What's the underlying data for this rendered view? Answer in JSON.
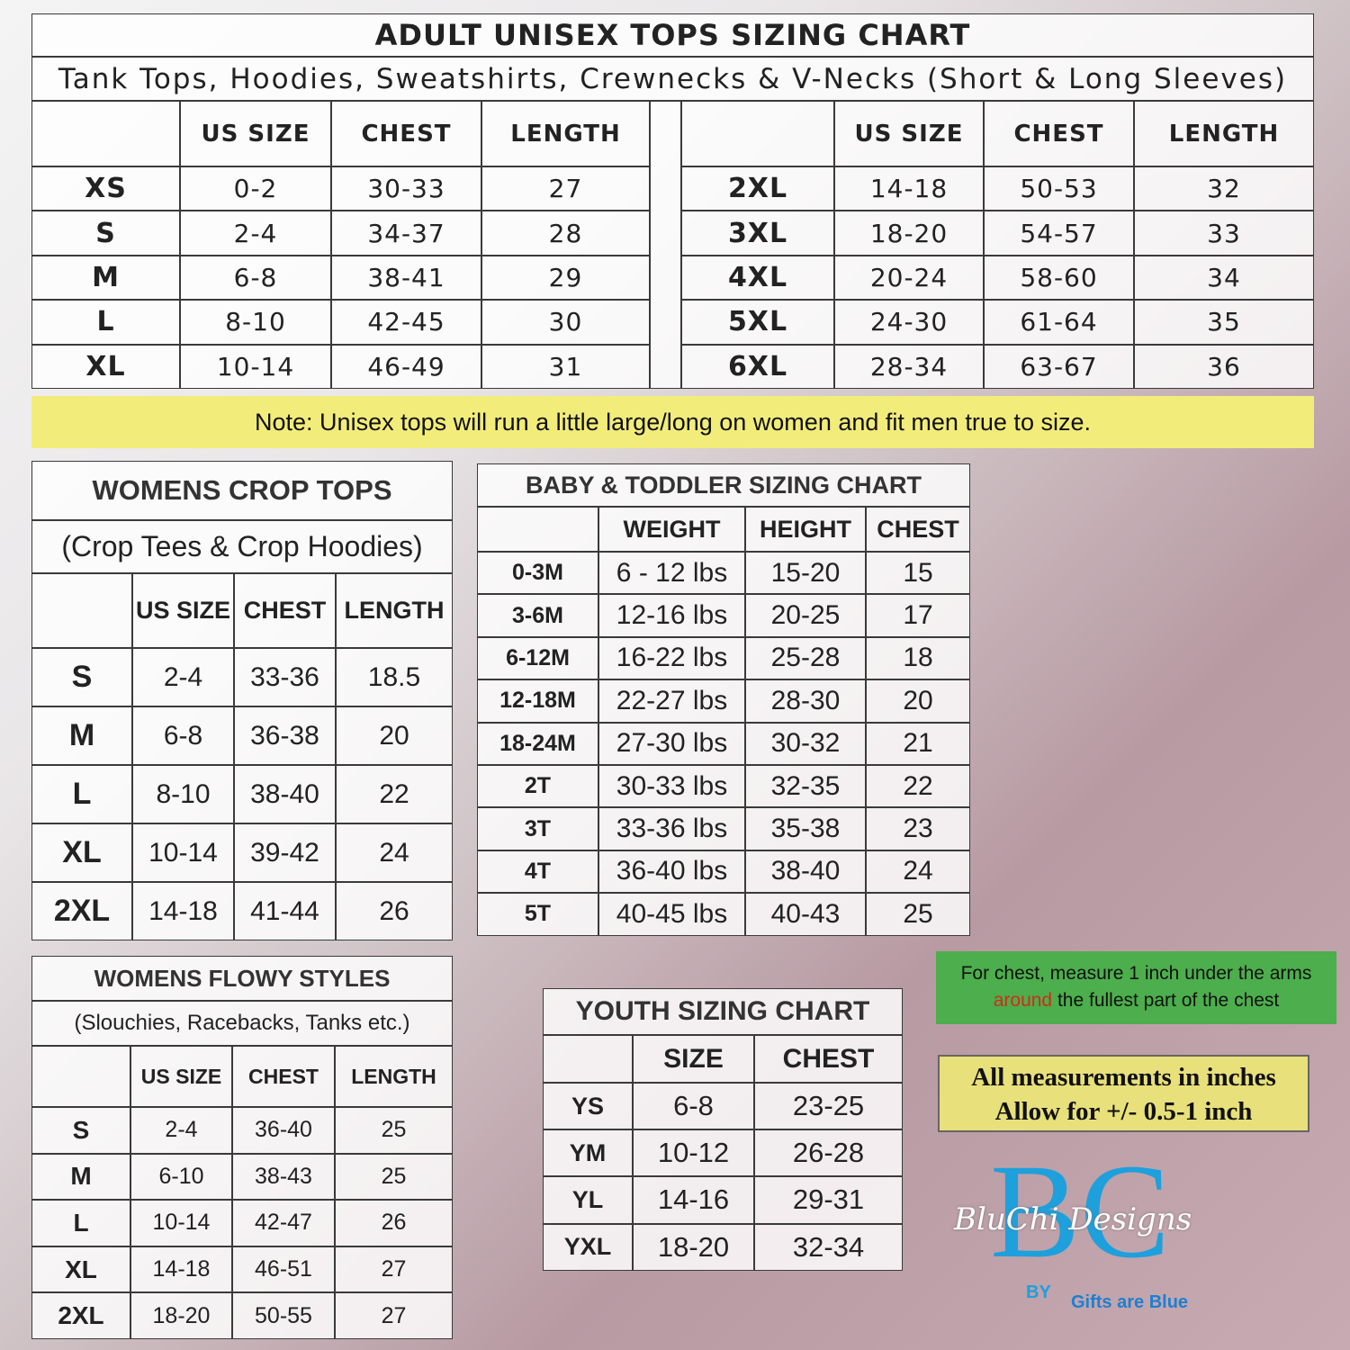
{
  "adult": {
    "title": "ADULT UNISEX TOPS SIZING CHART",
    "subtitle": "Tank Tops, Hoodies, Sweatshirts, Crewnecks & V-Necks (Short & Long Sleeves)",
    "headers": [
      "US SIZE",
      "CHEST",
      "LENGTH"
    ],
    "left_rows": [
      [
        "XS",
        "0-2",
        "30-33",
        27
      ],
      [
        "S",
        "2-4",
        "34-37",
        28
      ],
      [
        "M",
        "6-8",
        "38-41",
        29
      ],
      [
        "L",
        "8-10",
        "42-45",
        30
      ],
      [
        "XL",
        "10-14",
        "46-49",
        31
      ]
    ],
    "right_rows": [
      [
        "2XL",
        "14-18",
        "50-53",
        32
      ],
      [
        "3XL",
        "18-20",
        "54-57",
        33
      ],
      [
        "4XL",
        "20-24",
        "58-60",
        34
      ],
      [
        "5XL",
        "24-30",
        "61-64",
        35
      ],
      [
        "6XL",
        "28-34",
        "63-67",
        36
      ]
    ]
  },
  "note": "Note: Unisex tops will run a little large/long on women and fit men true to size.",
  "crop": {
    "title": "WOMENS CROP TOPS",
    "subtitle": "(Crop Tees & Crop Hoodies)",
    "headers": [
      "US SIZE",
      "CHEST",
      "LENGTH"
    ],
    "rows": [
      [
        "S",
        "2-4",
        "33-36",
        18.5
      ],
      [
        "M",
        "6-8",
        "36-38",
        20
      ],
      [
        "L",
        "8-10",
        "38-40",
        22
      ],
      [
        "XL",
        "10-14",
        "39-42",
        24
      ],
      [
        "2XL",
        "14-18",
        "41-44",
        26
      ]
    ]
  },
  "baby": {
    "title": "BABY & TODDLER SIZING CHART",
    "headers": [
      "WEIGHT",
      "HEIGHT",
      "CHEST"
    ],
    "rows": [
      [
        "0-3M",
        "6 - 12 lbs",
        "15-20",
        15
      ],
      [
        "3-6M",
        "12-16 lbs",
        "20-25",
        17
      ],
      [
        "6-12M",
        "16-22 lbs",
        "25-28",
        18
      ],
      [
        "12-18M",
        "22-27 lbs",
        "28-30",
        20
      ],
      [
        "18-24M",
        "27-30 lbs",
        "30-32",
        21
      ],
      [
        "2T",
        "30-33 lbs",
        "32-35",
        22
      ],
      [
        "3T",
        "33-36 lbs",
        "35-38",
        23
      ],
      [
        "4T",
        "36-40 lbs",
        "38-40",
        24
      ],
      [
        "5T",
        "40-45 lbs",
        "40-43",
        25
      ]
    ]
  },
  "flowy": {
    "title": "WOMENS FLOWY STYLES",
    "subtitle": "(Slouchies, Racebacks, Tanks etc.)",
    "headers": [
      "US SIZE",
      "CHEST",
      "LENGTH"
    ],
    "rows": [
      [
        "S",
        "2-4",
        "36-40",
        25
      ],
      [
        "M",
        "6-10",
        "38-43",
        25
      ],
      [
        "L",
        "10-14",
        "42-47",
        26
      ],
      [
        "XL",
        "14-18",
        "46-51",
        27
      ],
      [
        "2XL",
        "18-20",
        "50-55",
        27
      ]
    ]
  },
  "youth": {
    "title": "YOUTH SIZING CHART",
    "headers": [
      "SIZE",
      "CHEST"
    ],
    "rows": [
      [
        "YS",
        "6-8",
        "23-25"
      ],
      [
        "YM",
        "10-12",
        "26-28"
      ],
      [
        "YL",
        "14-16",
        "29-31"
      ],
      [
        "YXL",
        "18-20",
        "32-34"
      ]
    ]
  },
  "chest_note": [
    "For chest, measure 1 inch under the arms",
    "around",
    "the fullest part of the chest"
  ],
  "measurements": [
    "All measurements in inches",
    "Allow for +/- 0.5-1 inch"
  ],
  "logo": {
    "letters": [
      "B",
      "C"
    ],
    "script": "BluChi Designs",
    "by": "BY",
    "brand": "Gifts are Blue"
  }
}
